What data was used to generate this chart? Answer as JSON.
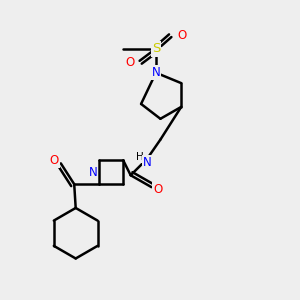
{
  "bg_color": "#eeeeee",
  "bond_color": "#000000",
  "N_color": "#0000ff",
  "O_color": "#ff0000",
  "S_color": "#cccc00",
  "line_width": 1.8,
  "font_size": 8.5,
  "xlim": [
    0,
    10
  ],
  "ylim": [
    0,
    10
  ]
}
